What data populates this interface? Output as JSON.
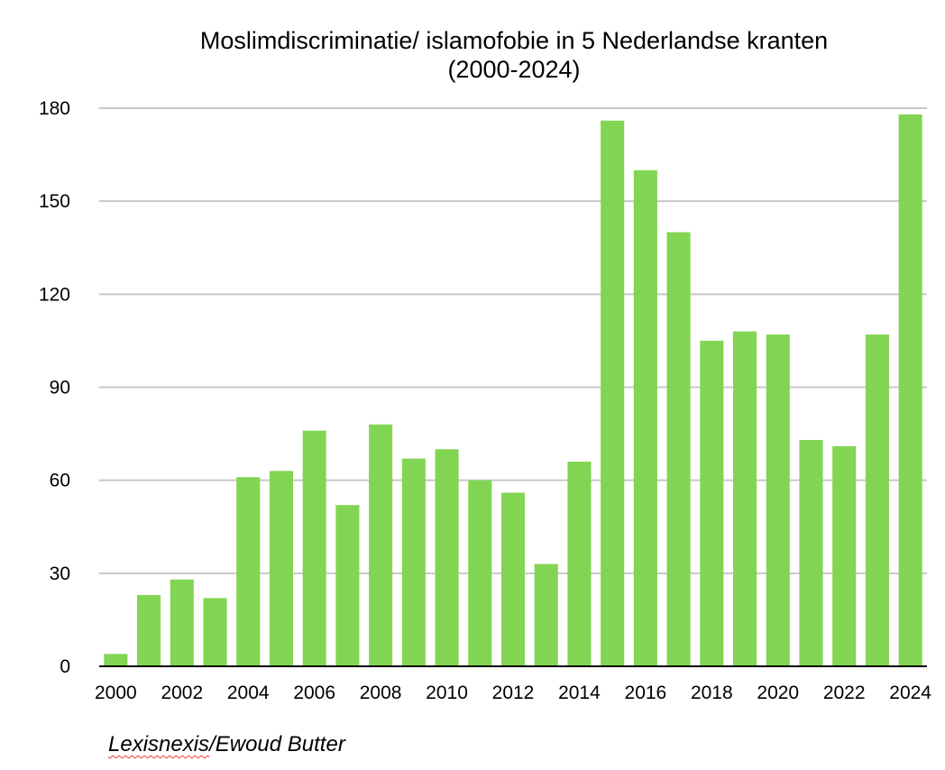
{
  "chart_data": {
    "type": "bar",
    "title": "Moslimdiscriminatie/ islamofobie in 5 Nederlandse kranten",
    "subtitle": "(2000-2024)",
    "xlabel": "",
    "ylabel": "",
    "categories": [
      "2000",
      "2001",
      "2002",
      "2003",
      "2004",
      "2005",
      "2006",
      "2007",
      "2008",
      "2009",
      "2010",
      "2011",
      "2012",
      "2013",
      "2014",
      "2015",
      "2016",
      "2017",
      "2018",
      "2019",
      "2020",
      "2021",
      "2022",
      "2023",
      "2024"
    ],
    "values": [
      4,
      23,
      28,
      22,
      61,
      63,
      76,
      52,
      78,
      67,
      70,
      60,
      56,
      33,
      66,
      176,
      160,
      140,
      105,
      108,
      107,
      73,
      71,
      107,
      178
    ],
    "x_tick_labels": [
      "2000",
      "2002",
      "2004",
      "2006",
      "2008",
      "2010",
      "2012",
      "2014",
      "2016",
      "2018",
      "2020",
      "2022",
      "2024"
    ],
    "y_ticks": [
      0,
      30,
      60,
      90,
      120,
      150,
      180
    ],
    "ylim": [
      0,
      180
    ],
    "grid": true,
    "legend": "none",
    "bar_color": "#82d552",
    "grid_color": "#c8c8c8"
  },
  "source": {
    "underlined": "Lexisnexis",
    "rest": "/Ewoud Butter"
  }
}
